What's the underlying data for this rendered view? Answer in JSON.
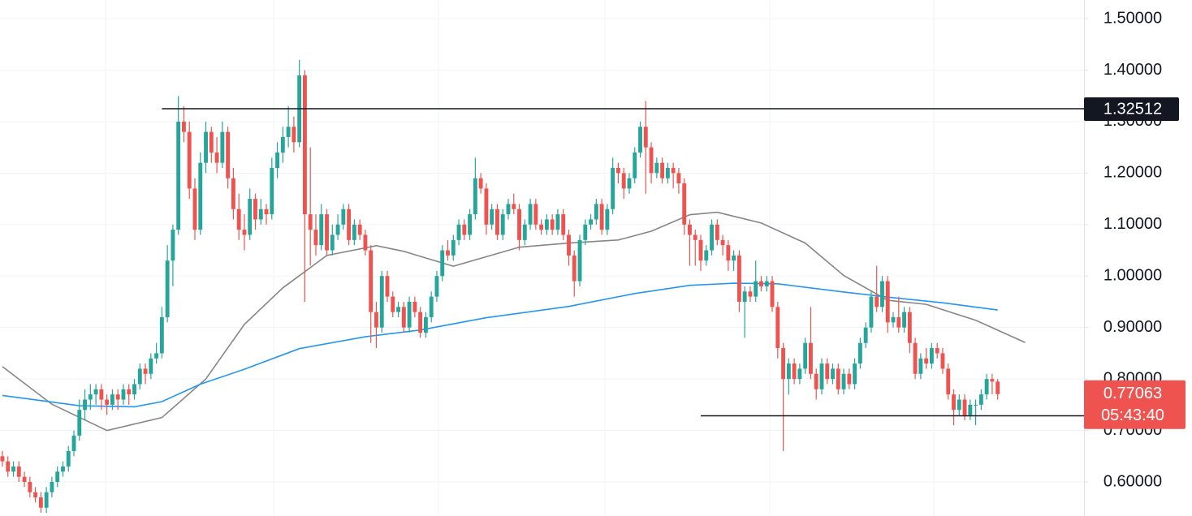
{
  "chart_data": {
    "type": "candlestick",
    "ylim": [
      0.5338,
      1.5363
    ],
    "xlim": [
      -0.44,
      196.7
    ],
    "yticks": [
      {
        "value": 0.6,
        "label": "0.60000"
      },
      {
        "value": 0.7,
        "label": "0.70000"
      },
      {
        "value": 0.8,
        "label": "0.80000"
      },
      {
        "value": 0.9,
        "label": "0.90000"
      },
      {
        "value": 1.0,
        "label": "1.00000"
      },
      {
        "value": 1.1,
        "label": "1.10000"
      },
      {
        "value": 1.2,
        "label": "1.20000"
      },
      {
        "value": 1.3,
        "label": "1.30000"
      },
      {
        "value": 1.4,
        "label": "1.40000"
      },
      {
        "value": 1.5,
        "label": "1.50000"
      }
    ],
    "grid": true,
    "up_color": "#26a69a",
    "down_color": "#ef5350",
    "ohlc": [
      [
        0.65,
        0.66,
        0.63,
        0.64
      ],
      [
        0.64,
        0.65,
        0.61,
        0.62
      ],
      [
        0.62,
        0.64,
        0.61,
        0.63
      ],
      [
        0.63,
        0.64,
        0.6,
        0.61
      ],
      [
        0.61,
        0.62,
        0.59,
        0.6
      ],
      [
        0.6,
        0.61,
        0.57,
        0.58
      ],
      [
        0.58,
        0.59,
        0.56,
        0.57
      ],
      [
        0.57,
        0.58,
        0.54,
        0.55
      ],
      [
        0.55,
        0.59,
        0.54,
        0.58
      ],
      [
        0.58,
        0.61,
        0.57,
        0.6
      ],
      [
        0.6,
        0.63,
        0.59,
        0.62
      ],
      [
        0.62,
        0.64,
        0.61,
        0.63
      ],
      [
        0.63,
        0.67,
        0.62,
        0.66
      ],
      [
        0.66,
        0.7,
        0.65,
        0.69
      ],
      [
        0.69,
        0.76,
        0.68,
        0.74
      ],
      [
        0.74,
        0.78,
        0.72,
        0.76
      ],
      [
        0.76,
        0.79,
        0.74,
        0.77
      ],
      [
        0.77,
        0.79,
        0.75,
        0.78
      ],
      [
        0.78,
        0.79,
        0.74,
        0.76
      ],
      [
        0.76,
        0.77,
        0.73,
        0.75
      ],
      [
        0.75,
        0.78,
        0.74,
        0.77
      ],
      [
        0.77,
        0.78,
        0.74,
        0.76
      ],
      [
        0.76,
        0.79,
        0.75,
        0.78
      ],
      [
        0.78,
        0.79,
        0.75,
        0.77
      ],
      [
        0.77,
        0.8,
        0.76,
        0.79
      ],
      [
        0.79,
        0.83,
        0.78,
        0.82
      ],
      [
        0.82,
        0.83,
        0.79,
        0.81
      ],
      [
        0.81,
        0.85,
        0.8,
        0.84
      ],
      [
        0.84,
        0.87,
        0.83,
        0.85
      ],
      [
        0.85,
        0.94,
        0.84,
        0.92
      ],
      [
        0.92,
        1.06,
        0.91,
        1.03
      ],
      [
        1.03,
        1.1,
        0.98,
        1.09
      ],
      [
        1.09,
        1.35,
        1.08,
        1.3
      ],
      [
        1.3,
        1.33,
        1.26,
        1.28
      ],
      [
        1.28,
        1.3,
        1.15,
        1.17
      ],
      [
        1.17,
        1.19,
        1.07,
        1.09
      ],
      [
        1.09,
        1.24,
        1.08,
        1.22
      ],
      [
        1.22,
        1.3,
        1.2,
        1.28
      ],
      [
        1.28,
        1.29,
        1.22,
        1.24
      ],
      [
        1.24,
        1.27,
        1.2,
        1.22
      ],
      [
        1.22,
        1.3,
        1.21,
        1.28
      ],
      [
        1.28,
        1.29,
        1.17,
        1.19
      ],
      [
        1.19,
        1.21,
        1.11,
        1.13
      ],
      [
        1.13,
        1.16,
        1.07,
        1.09
      ],
      [
        1.09,
        1.12,
        1.05,
        1.08
      ],
      [
        1.08,
        1.17,
        1.07,
        1.15
      ],
      [
        1.15,
        1.16,
        1.09,
        1.11
      ],
      [
        1.11,
        1.15,
        1.1,
        1.13
      ],
      [
        1.13,
        1.14,
        1.1,
        1.12
      ],
      [
        1.12,
        1.23,
        1.11,
        1.21
      ],
      [
        1.21,
        1.26,
        1.19,
        1.24
      ],
      [
        1.24,
        1.29,
        1.22,
        1.27
      ],
      [
        1.27,
        1.33,
        1.25,
        1.29
      ],
      [
        1.29,
        1.31,
        1.24,
        1.26
      ],
      [
        1.26,
        1.42,
        1.25,
        1.39
      ],
      [
        1.39,
        1.4,
        0.95,
        1.12
      ],
      [
        1.12,
        1.25,
        1.02,
        1.09
      ],
      [
        1.09,
        1.12,
        1.04,
        1.06
      ],
      [
        1.06,
        1.14,
        1.05,
        1.12
      ],
      [
        1.12,
        1.13,
        1.04,
        1.05
      ],
      [
        1.05,
        1.1,
        1.04,
        1.08
      ],
      [
        1.08,
        1.12,
        1.07,
        1.1
      ],
      [
        1.1,
        1.14,
        1.09,
        1.13
      ],
      [
        1.13,
        1.14,
        1.06,
        1.07
      ],
      [
        1.07,
        1.11,
        1.06,
        1.1
      ],
      [
        1.1,
        1.11,
        1.07,
        1.08
      ],
      [
        1.08,
        1.09,
        1.04,
        1.05
      ],
      [
        1.05,
        1.06,
        0.87,
        0.93
      ],
      [
        0.93,
        0.95,
        0.86,
        0.9
      ],
      [
        0.9,
        1.01,
        0.89,
        1.0
      ],
      [
        1.0,
        1.01,
        0.95,
        0.96
      ],
      [
        0.96,
        0.97,
        0.92,
        0.93
      ],
      [
        0.93,
        0.95,
        0.92,
        0.94
      ],
      [
        0.94,
        0.95,
        0.89,
        0.9
      ],
      [
        0.9,
        0.96,
        0.89,
        0.95
      ],
      [
        0.95,
        0.96,
        0.92,
        0.93
      ],
      [
        0.93,
        0.94,
        0.88,
        0.89
      ],
      [
        0.89,
        0.93,
        0.88,
        0.92
      ],
      [
        0.92,
        0.97,
        0.91,
        0.96
      ],
      [
        0.96,
        1.01,
        0.95,
        1.0
      ],
      [
        1.0,
        1.06,
        0.99,
        1.05
      ],
      [
        1.05,
        1.07,
        1.03,
        1.04
      ],
      [
        1.04,
        1.08,
        1.03,
        1.07
      ],
      [
        1.07,
        1.11,
        1.06,
        1.1
      ],
      [
        1.1,
        1.11,
        1.07,
        1.08
      ],
      [
        1.08,
        1.13,
        1.07,
        1.12
      ],
      [
        1.12,
        1.23,
        1.11,
        1.19
      ],
      [
        1.19,
        1.2,
        1.16,
        1.17
      ],
      [
        1.17,
        1.18,
        1.08,
        1.1
      ],
      [
        1.1,
        1.14,
        1.09,
        1.13
      ],
      [
        1.13,
        1.14,
        1.07,
        1.08
      ],
      [
        1.08,
        1.13,
        1.07,
        1.12
      ],
      [
        1.12,
        1.15,
        1.11,
        1.14
      ],
      [
        1.14,
        1.16,
        1.12,
        1.13
      ],
      [
        1.13,
        1.14,
        1.05,
        1.07
      ],
      [
        1.07,
        1.11,
        1.06,
        1.1
      ],
      [
        1.1,
        1.15,
        1.09,
        1.14
      ],
      [
        1.14,
        1.15,
        1.09,
        1.1
      ],
      [
        1.1,
        1.11,
        1.08,
        1.09
      ],
      [
        1.09,
        1.12,
        1.08,
        1.11
      ],
      [
        1.11,
        1.12,
        1.08,
        1.09
      ],
      [
        1.09,
        1.13,
        1.08,
        1.12
      ],
      [
        1.12,
        1.13,
        1.07,
        1.08
      ],
      [
        1.08,
        1.09,
        1.02,
        1.04
      ],
      [
        1.04,
        1.05,
        0.96,
        0.99
      ],
      [
        0.99,
        1.08,
        0.98,
        1.07
      ],
      [
        1.07,
        1.11,
        1.06,
        1.1
      ],
      [
        1.1,
        1.12,
        1.09,
        1.11
      ],
      [
        1.11,
        1.15,
        1.1,
        1.14
      ],
      [
        1.14,
        1.15,
        1.08,
        1.09
      ],
      [
        1.09,
        1.14,
        1.08,
        1.13
      ],
      [
        1.13,
        1.23,
        1.12,
        1.21
      ],
      [
        1.21,
        1.22,
        1.18,
        1.2
      ],
      [
        1.2,
        1.21,
        1.15,
        1.17
      ],
      [
        1.17,
        1.2,
        1.16,
        1.19
      ],
      [
        1.19,
        1.25,
        1.18,
        1.24
      ],
      [
        1.24,
        1.3,
        1.23,
        1.29
      ],
      [
        1.29,
        1.34,
        1.16,
        1.25
      ],
      [
        1.25,
        1.26,
        1.18,
        1.2
      ],
      [
        1.2,
        1.23,
        1.19,
        1.22
      ],
      [
        1.22,
        1.23,
        1.18,
        1.19
      ],
      [
        1.19,
        1.22,
        1.18,
        1.21
      ],
      [
        1.21,
        1.22,
        1.17,
        1.2
      ],
      [
        1.2,
        1.21,
        1.16,
        1.18
      ],
      [
        1.18,
        1.19,
        1.08,
        1.1
      ],
      [
        1.1,
        1.11,
        1.02,
        1.08
      ],
      [
        1.08,
        1.09,
        1.02,
        1.07
      ],
      [
        1.07,
        1.08,
        1.01,
        1.03
      ],
      [
        1.03,
        1.06,
        1.02,
        1.05
      ],
      [
        1.05,
        1.11,
        1.04,
        1.1
      ],
      [
        1.1,
        1.11,
        1.06,
        1.07
      ],
      [
        1.07,
        1.08,
        1.04,
        1.06
      ],
      [
        1.06,
        1.07,
        1.01,
        1.03
      ],
      [
        1.03,
        1.05,
        1.01,
        1.04
      ],
      [
        1.04,
        1.05,
        0.93,
        0.95
      ],
      [
        0.95,
        0.98,
        0.88,
        0.97
      ],
      [
        0.97,
        0.98,
        0.95,
        0.96
      ],
      [
        0.96,
        1.03,
        0.95,
        0.99
      ],
      [
        0.99,
        1.0,
        0.97,
        0.98
      ],
      [
        0.98,
        1.0,
        0.97,
        0.99
      ],
      [
        0.99,
        1.0,
        0.93,
        0.94
      ],
      [
        0.94,
        0.95,
        0.84,
        0.86
      ],
      [
        0.86,
        0.87,
        0.66,
        0.8
      ],
      [
        0.8,
        0.84,
        0.77,
        0.83
      ],
      [
        0.83,
        0.84,
        0.79,
        0.8
      ],
      [
        0.8,
        0.83,
        0.79,
        0.82
      ],
      [
        0.82,
        0.88,
        0.81,
        0.87
      ],
      [
        0.87,
        0.94,
        0.8,
        0.81
      ],
      [
        0.81,
        0.82,
        0.76,
        0.78
      ],
      [
        0.78,
        0.84,
        0.77,
        0.83
      ],
      [
        0.83,
        0.84,
        0.79,
        0.8
      ],
      [
        0.8,
        0.83,
        0.79,
        0.82
      ],
      [
        0.82,
        0.83,
        0.77,
        0.78
      ],
      [
        0.78,
        0.82,
        0.77,
        0.81
      ],
      [
        0.81,
        0.82,
        0.78,
        0.79
      ],
      [
        0.79,
        0.84,
        0.78,
        0.83
      ],
      [
        0.83,
        0.88,
        0.82,
        0.87
      ],
      [
        0.87,
        0.91,
        0.86,
        0.9
      ],
      [
        0.9,
        0.97,
        0.89,
        0.96
      ],
      [
        0.96,
        1.02,
        0.93,
        0.94
      ],
      [
        0.94,
        1.0,
        0.93,
        0.99
      ],
      [
        0.99,
        1.0,
        0.89,
        0.91
      ],
      [
        0.91,
        0.93,
        0.9,
        0.92
      ],
      [
        0.92,
        0.96,
        0.89,
        0.9
      ],
      [
        0.9,
        0.94,
        0.89,
        0.93
      ],
      [
        0.93,
        0.94,
        0.85,
        0.87
      ],
      [
        0.87,
        0.88,
        0.8,
        0.81
      ],
      [
        0.81,
        0.85,
        0.8,
        0.84
      ],
      [
        0.84,
        0.86,
        0.82,
        0.83
      ],
      [
        0.83,
        0.87,
        0.82,
        0.86
      ],
      [
        0.86,
        0.87,
        0.84,
        0.85
      ],
      [
        0.85,
        0.86,
        0.81,
        0.82
      ],
      [
        0.82,
        0.83,
        0.76,
        0.77
      ],
      [
        0.77,
        0.78,
        0.71,
        0.74
      ],
      [
        0.74,
        0.77,
        0.73,
        0.76
      ],
      [
        0.76,
        0.77,
        0.72,
        0.73
      ],
      [
        0.73,
        0.76,
        0.72,
        0.75
      ],
      [
        0.75,
        0.76,
        0.71,
        0.75
      ],
      [
        0.75,
        0.78,
        0.74,
        0.77
      ],
      [
        0.77,
        0.81,
        0.76,
        0.8
      ],
      [
        0.8,
        0.81,
        0.77,
        0.795
      ],
      [
        0.795,
        0.8,
        0.76,
        0.77063
      ]
    ],
    "overlays": [
      {
        "color": "#868686",
        "x": [
          0,
          9,
          19,
          29,
          37,
          44,
          51,
          59,
          68,
          73,
          82,
          94,
          103,
          112,
          118,
          125,
          130,
          138,
          146,
          153,
          161,
          168,
          177,
          186
        ],
        "values": [
          0.824,
          0.751,
          0.7,
          0.725,
          0.8,
          0.906,
          0.977,
          1.04,
          1.059,
          1.048,
          1.019,
          1.056,
          1.064,
          1.07,
          1.087,
          1.119,
          1.124,
          1.103,
          1.064,
          1.001,
          0.953,
          0.945,
          0.914,
          0.871
        ]
      },
      {
        "color": "#2196f3",
        "x": [
          0,
          14,
          24,
          29,
          36,
          44,
          54,
          66,
          76,
          88,
          103,
          115,
          125,
          133,
          141,
          153,
          162,
          171,
          181
        ],
        "values": [
          0.768,
          0.748,
          0.746,
          0.756,
          0.79,
          0.819,
          0.859,
          0.882,
          0.895,
          0.919,
          0.941,
          0.966,
          0.982,
          0.986,
          0.985,
          0.969,
          0.958,
          0.948,
          0.934
        ]
      }
    ],
    "hlines": [
      {
        "value": 1.32512,
        "start": 29,
        "color": "#131722"
      },
      {
        "value": 0.72842,
        "start": 127,
        "color": "#131722"
      }
    ],
    "countdown": "05:43:40"
  }
}
